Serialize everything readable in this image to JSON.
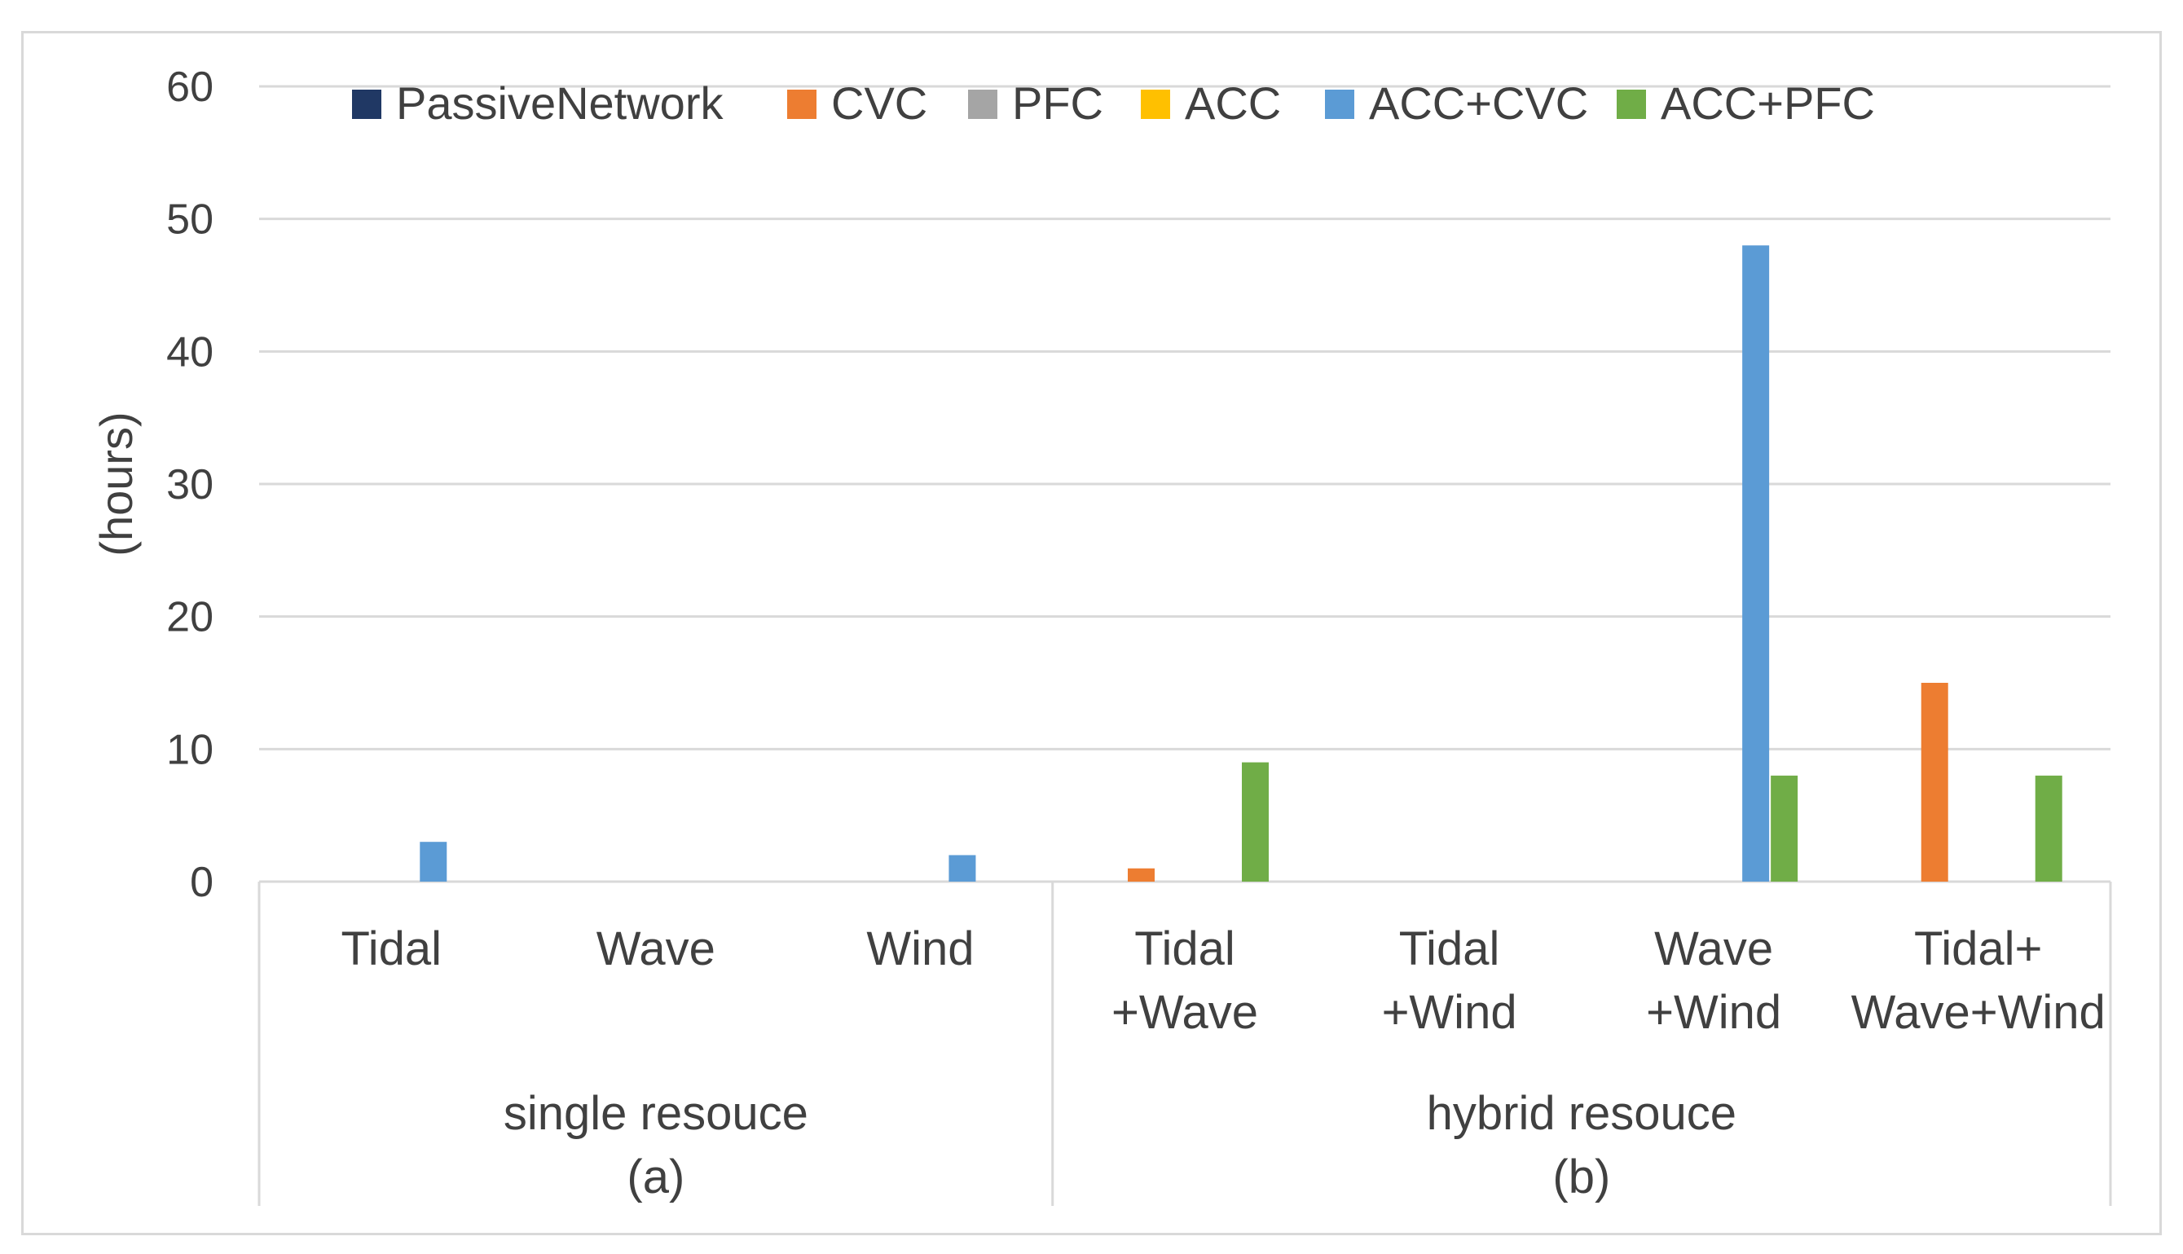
{
  "chart_data": {
    "type": "bar",
    "ylabel": "(hours)",
    "ylim": [
      0,
      60
    ],
    "yticks": [
      0,
      10,
      20,
      30,
      40,
      50,
      60
    ],
    "grid": true,
    "legend_position": "top",
    "categories": [
      {
        "lines": [
          "Tidal"
        ]
      },
      {
        "lines": [
          "Wave"
        ]
      },
      {
        "lines": [
          "Wind"
        ]
      },
      {
        "lines": [
          "Tidal",
          "+Wave"
        ]
      },
      {
        "lines": [
          "Tidal",
          "+Wind"
        ]
      },
      {
        "lines": [
          "Wave",
          "+Wind"
        ]
      },
      {
        "lines": [
          "Tidal+",
          "Wave+Wind"
        ]
      }
    ],
    "groups": [
      {
        "lines": [
          "single resouce",
          "(a)"
        ],
        "span": [
          0,
          2
        ]
      },
      {
        "lines": [
          "hybrid resouce",
          "(b)"
        ],
        "span": [
          3,
          6
        ]
      }
    ],
    "series": [
      {
        "name": "PassiveNetwork",
        "color": "#203864",
        "values": [
          0,
          0,
          0,
          0,
          0,
          0,
          0
        ]
      },
      {
        "name": "CVC",
        "color": "#ed7d31",
        "values": [
          0,
          0,
          0,
          1,
          0,
          0,
          15
        ]
      },
      {
        "name": "PFC",
        "color": "#a5a5a5",
        "values": [
          0,
          0,
          0,
          0,
          0,
          0,
          0
        ]
      },
      {
        "name": "ACC",
        "color": "#ffc000",
        "values": [
          0,
          0,
          0,
          0,
          0,
          0,
          0
        ]
      },
      {
        "name": "ACC+CVC",
        "color": "#5b9bd5",
        "values": [
          3,
          0,
          2,
          0,
          0,
          48,
          0
        ]
      },
      {
        "name": "ACC+PFC",
        "color": "#70ad47",
        "values": [
          0,
          0,
          0,
          9,
          0,
          8,
          8
        ]
      }
    ]
  }
}
